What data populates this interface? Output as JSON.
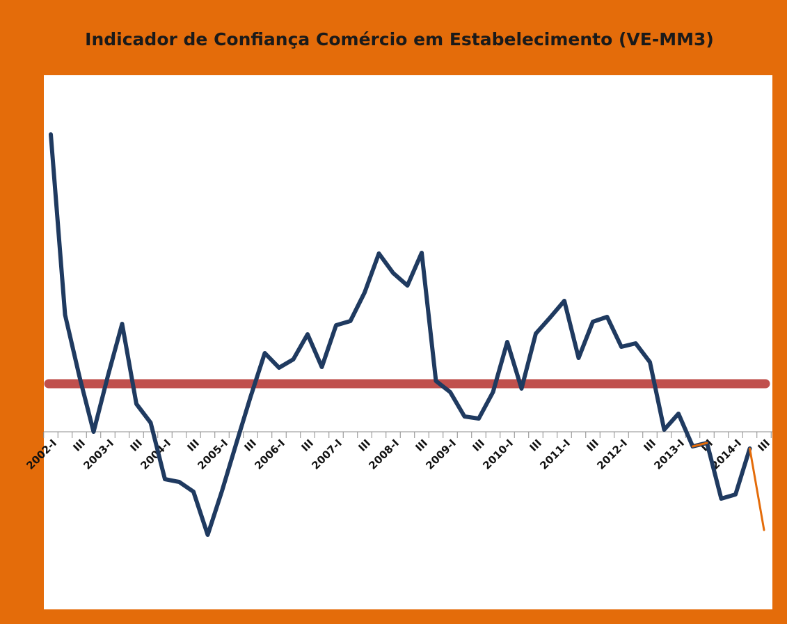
{
  "chart_data": {
    "type": "line",
    "title": "Indicador de Confiança Comércio em Estabelecimento (VE-MM3)",
    "categories": [
      "2002-I",
      null,
      "III",
      null,
      "2003-I",
      null,
      "III",
      null,
      "2004-I",
      null,
      "III",
      null,
      "2005-I",
      null,
      "III",
      null,
      "2006-I",
      null,
      "III",
      null,
      "2007-I",
      null,
      "III",
      null,
      "2008-I",
      null,
      "III",
      null,
      "2009-I",
      null,
      "III",
      null,
      "2010-I",
      null,
      "III",
      null,
      "2011-I",
      null,
      "III",
      null,
      "2012-I",
      null,
      "III",
      null,
      "2013-I",
      null,
      "III",
      null,
      "2014-I",
      null,
      "III"
    ],
    "series": [
      {
        "color": "#1f3a60",
        "values": [
          42.7,
          16.8,
          8.0,
          0.0,
          8.0,
          15.5,
          4.0,
          1.3,
          -6.8,
          -7.2,
          -8.6,
          -14.8,
          -8.5,
          -1.7,
          5.0,
          11.3,
          9.2,
          10.4,
          14.0,
          9.3,
          15.3,
          15.9,
          20.0,
          25.6,
          22.8,
          21.0,
          25.7,
          7.3,
          5.7,
          2.2,
          1.9,
          5.7,
          12.9,
          6.2,
          14.1,
          16.4,
          18.8,
          10.6,
          15.8,
          16.5,
          12.2,
          12.7,
          10.0,
          0.3,
          2.6,
          -2.1,
          -1.6,
          -9.6,
          -9.0,
          -2.4,
          null
        ]
      },
      {
        "color": "#e46c0a",
        "values": [
          null,
          null,
          null,
          null,
          null,
          null,
          null,
          null,
          null,
          null,
          null,
          null,
          null,
          null,
          null,
          null,
          null,
          null,
          null,
          null,
          null,
          null,
          null,
          null,
          null,
          null,
          null,
          null,
          null,
          null,
          null,
          null,
          null,
          null,
          null,
          null,
          null,
          null,
          null,
          null,
          null,
          null,
          null,
          null,
          null,
          -2.1,
          -1.6,
          null,
          null,
          -2.4,
          -14.1
        ]
      }
    ],
    "reference_line": {
      "value": 6.9,
      "color": "#c0504d"
    },
    "ylim": [
      -25.5,
      51.2
    ]
  }
}
